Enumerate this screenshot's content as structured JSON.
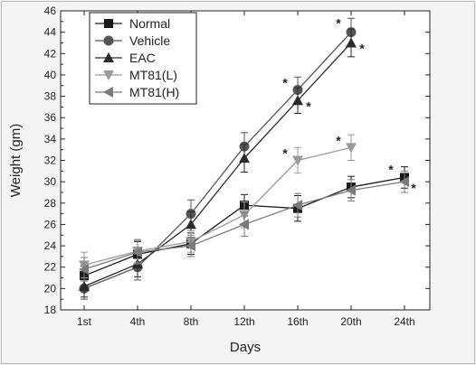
{
  "chart_data": {
    "type": "line",
    "title": "",
    "xlabel": "Days",
    "ylabel": "Weight  (gm)",
    "categories": [
      "1st",
      "4th",
      "8th",
      "12th",
      "16th",
      "20th",
      "24th"
    ],
    "ylim": [
      18,
      46
    ],
    "yticks": [
      18,
      20,
      22,
      24,
      26,
      28,
      30,
      32,
      34,
      36,
      38,
      40,
      42,
      44,
      46
    ],
    "grid": false,
    "legend_position": "top-left",
    "series": [
      {
        "name": "Normal",
        "marker": "square",
        "color": "#1a1a1a",
        "values": [
          21.2,
          23.2,
          24.2,
          27.8,
          27.5,
          29.5,
          30.4
        ],
        "errors": [
          0.9,
          1.2,
          1.0,
          1.0,
          1.2,
          1.0,
          1.0
        ]
      },
      {
        "name": "Vehicle",
        "marker": "circle",
        "color": "#555555",
        "values": [
          20.0,
          22.0,
          27.0,
          33.3,
          38.6,
          44.0,
          null
        ],
        "errors": [
          1.0,
          1.2,
          1.3,
          1.3,
          1.2,
          1.3,
          null
        ]
      },
      {
        "name": "EAC",
        "marker": "triangle-up",
        "color": "#2a2a2a",
        "values": [
          20.2,
          22.3,
          26.0,
          32.2,
          37.6,
          43.0,
          null
        ],
        "errors": [
          1.0,
          1.2,
          1.2,
          1.3,
          1.2,
          1.3,
          null
        ]
      },
      {
        "name": "MT81(L)",
        "marker": "triangle-down",
        "color": "#9a9a9a",
        "values": [
          22.2,
          23.5,
          24.4,
          26.9,
          32.0,
          33.2,
          null
        ],
        "errors": [
          1.2,
          1.1,
          1.0,
          1.2,
          1.2,
          1.2,
          null
        ]
      },
      {
        "name": "MT81(H)",
        "marker": "triangle-left",
        "color": "#7a7a7a",
        "values": [
          21.8,
          23.4,
          24.0,
          26.0,
          27.8,
          29.2,
          30.0
        ],
        "errors": [
          1.1,
          1.1,
          1.0,
          1.1,
          1.1,
          1.0,
          1.0
        ]
      }
    ],
    "annotations": [
      {
        "text": "*",
        "series": "Vehicle",
        "x": "16th"
      },
      {
        "text": "*",
        "series": "EAC",
        "x": "16th"
      },
      {
        "text": "*",
        "series": "MT81(L)",
        "x": "16th"
      },
      {
        "text": "*",
        "series": "Vehicle",
        "x": "20th"
      },
      {
        "text": "*",
        "series": "EAC",
        "x": "20th"
      },
      {
        "text": "*",
        "series": "MT81(L)",
        "x": "20th"
      },
      {
        "text": "*",
        "series": "Normal",
        "x": "24th"
      },
      {
        "text": "*",
        "series": "MT81(H)",
        "x": "24th"
      }
    ]
  }
}
